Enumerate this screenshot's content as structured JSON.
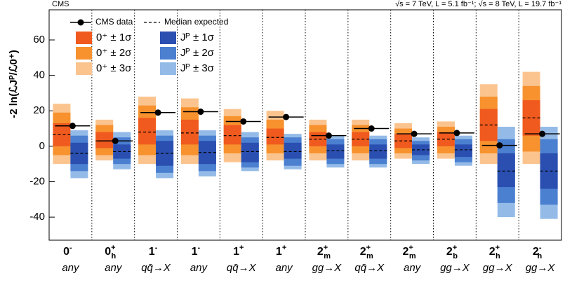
{
  "chart_data": {
    "type": "hypothesis-bands",
    "experiment": "CMS",
    "energy_note": "√s = 7 TeV, L = 5.1 fb⁻¹; √s = 8 TeV, L = 19.7 fb⁻¹",
    "y_label": "-2 ln(ℒJᴾ/ℒ0⁺)",
    "ylim": [
      -53,
      77
    ],
    "yticks": [
      -40,
      -20,
      0,
      20,
      40,
      60
    ],
    "observed_legend": "CMS data",
    "median_legend": "Median expected",
    "band_legend": [
      {
        "name": "0⁺ ± 1σ",
        "color": "#f05a1e"
      },
      {
        "name": "0⁺ ± 2σ",
        "color": "#f7922e"
      },
      {
        "name": "0⁺ ± 3σ",
        "color": "#fbc48f"
      },
      {
        "name": "Jᴾ ± 1σ",
        "color": "#2a4fb0"
      },
      {
        "name": "Jᴾ ± 2σ",
        "color": "#4b7fd0"
      },
      {
        "name": "Jᴾ ± 3σ",
        "color": "#94bbe8"
      }
    ],
    "hypotheses": [
      {
        "label": {
          "base": "0",
          "sup": "-"
        },
        "production": "any",
        "observed": 11.5,
        "sm": {
          "median": 6.5,
          "s1": [
            0,
            13
          ],
          "s2": [
            -5,
            19
          ],
          "s3": [
            -10,
            24
          ]
        },
        "alt": {
          "median": -4,
          "s1": [
            -10,
            2
          ],
          "s2": [
            -14,
            6
          ],
          "s3": [
            -18,
            9
          ]
        }
      },
      {
        "label": {
          "base": "0",
          "sup": "+",
          "sub": "h"
        },
        "production": "any",
        "observed": 3,
        "sm": {
          "median": 3,
          "s1": [
            -1,
            8
          ],
          "s2": [
            -5,
            12
          ],
          "s3": [
            -8,
            15
          ]
        },
        "alt": {
          "median": -3,
          "s1": [
            -7,
            1
          ],
          "s2": [
            -10,
            5
          ],
          "s3": [
            -13,
            8
          ]
        }
      },
      {
        "label": {
          "base": "1",
          "sup": "-"
        },
        "production": "qq̄→X",
        "observed": 19,
        "sm": {
          "median": 8,
          "s1": [
            1,
            16
          ],
          "s2": [
            -5,
            23
          ],
          "s3": [
            -10,
            28
          ]
        },
        "alt": {
          "median": -4,
          "s1": [
            -11,
            3
          ],
          "s2": [
            -15,
            6
          ],
          "s3": [
            -18,
            9
          ]
        }
      },
      {
        "label": {
          "base": "1",
          "sup": "-"
        },
        "production": "any",
        "observed": 19.5,
        "sm": {
          "median": 7.5,
          "s1": [
            1,
            15
          ],
          "s2": [
            -5,
            22
          ],
          "s3": [
            -10,
            27
          ]
        },
        "alt": {
          "median": -3.5,
          "s1": [
            -10,
            3
          ],
          "s2": [
            -14,
            6
          ],
          "s3": [
            -17,
            9
          ]
        }
      },
      {
        "label": {
          "base": "1",
          "sup": "+"
        },
        "production": "qq̄→X",
        "observed": 14,
        "sm": {
          "median": 6,
          "s1": [
            1,
            12
          ],
          "s2": [
            -4,
            17
          ],
          "s3": [
            -9,
            21
          ]
        },
        "alt": {
          "median": -3,
          "s1": [
            -9,
            2
          ],
          "s2": [
            -12,
            5
          ],
          "s3": [
            -14,
            8
          ]
        }
      },
      {
        "label": {
          "base": "1",
          "sup": "+"
        },
        "production": "any",
        "observed": 16.5,
        "sm": {
          "median": 5,
          "s1": [
            1,
            10
          ],
          "s2": [
            -4,
            15
          ],
          "s3": [
            -8,
            20
          ]
        },
        "alt": {
          "median": -3,
          "s1": [
            -7,
            2
          ],
          "s2": [
            -11,
            5
          ],
          "s3": [
            -13,
            7
          ]
        }
      },
      {
        "label": {
          "base": "2",
          "sup": "+",
          "sub": "m"
        },
        "production": "gg→X",
        "observed": 6,
        "sm": {
          "median": 4,
          "s1": [
            0,
            8
          ],
          "s2": [
            -4,
            12
          ],
          "s3": [
            -8,
            15
          ]
        },
        "alt": {
          "median": -2.5,
          "s1": [
            -7,
            1
          ],
          "s2": [
            -10,
            4
          ],
          "s3": [
            -12,
            6
          ]
        }
      },
      {
        "label": {
          "base": "2",
          "sup": "+",
          "sub": "m"
        },
        "production": "qq̄→X",
        "observed": 10,
        "sm": {
          "median": 4,
          "s1": [
            0,
            8
          ],
          "s2": [
            -4,
            12
          ],
          "s3": [
            -8,
            15
          ]
        },
        "alt": {
          "median": -2.5,
          "s1": [
            -7,
            1
          ],
          "s2": [
            -10,
            4
          ],
          "s3": [
            -12,
            6
          ]
        }
      },
      {
        "label": {
          "base": "2",
          "sup": "+",
          "sub": "m"
        },
        "production": "any",
        "observed": 7,
        "sm": {
          "median": 3,
          "s1": [
            -1,
            7
          ],
          "s2": [
            -4,
            10
          ],
          "s3": [
            -7,
            13
          ]
        },
        "alt": {
          "median": -2,
          "s1": [
            -5,
            1
          ],
          "s2": [
            -8,
            3
          ],
          "s3": [
            -10,
            5
          ]
        }
      },
      {
        "label": {
          "base": "2",
          "sup": "+",
          "sub": "b"
        },
        "production": "gg→X",
        "observed": 7.5,
        "sm": {
          "median": 4,
          "s1": [
            0,
            8
          ],
          "s2": [
            -4,
            11
          ],
          "s3": [
            -7,
            14
          ]
        },
        "alt": {
          "median": -2,
          "s1": [
            -6,
            1
          ],
          "s2": [
            -9,
            4
          ],
          "s3": [
            -11,
            6
          ]
        }
      },
      {
        "label": {
          "base": "2",
          "sup": "+",
          "sub": "h"
        },
        "production": "gg→X",
        "observed": 0.5,
        "sm": {
          "median": 12,
          "s1": [
            3,
            21
          ],
          "s2": [
            -4,
            28
          ],
          "s3": [
            -10,
            35
          ]
        },
        "alt": {
          "median": -14,
          "s1": [
            -23,
            -4
          ],
          "s2": [
            -32,
            4
          ],
          "s3": [
            -40,
            11
          ]
        }
      },
      {
        "label": {
          "base": "2",
          "sup": "-",
          "sub": "h"
        },
        "production": "gg→X",
        "observed": 7,
        "sm": {
          "median": 16,
          "s1": [
            6,
            26
          ],
          "s2": [
            -3,
            34
          ],
          "s3": [
            -10,
            42
          ]
        },
        "alt": {
          "median": -14,
          "s1": [
            -24,
            -4
          ],
          "s2": [
            -33,
            4
          ],
          "s3": [
            -41,
            11
          ]
        }
      }
    ]
  }
}
